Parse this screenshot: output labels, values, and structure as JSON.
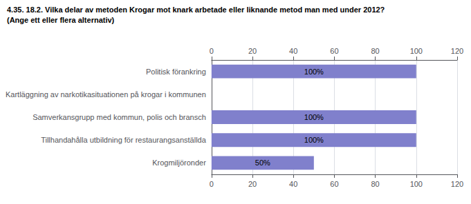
{
  "chart_data": {
    "type": "bar",
    "orientation": "horizontal",
    "title": "4.35. 18.2. Vilka delar av metoden Krogar mot knark arbetade eller liknande metod man med under 2012?",
    "subtitle": "(Ange ett eller flera alternativ)",
    "categories": [
      "Krogmiljöronder",
      "Tillhandahålla utbildning för restaurangsanställda",
      "Samverkansgrupp med kommun, polis och bransch",
      "Kartläggning av narkotikasituationen på krogar i kommunen",
      "Politisk förankring"
    ],
    "values": [
      50,
      100,
      100,
      0,
      100
    ],
    "value_labels": [
      "50%",
      "100%",
      "100%",
      null,
      "100%"
    ],
    "data_labels": true,
    "color": "#8080cc",
    "xlim": [
      0,
      120
    ],
    "xticks": [
      0,
      20,
      40,
      60,
      80,
      100,
      120
    ],
    "grid": true
  }
}
